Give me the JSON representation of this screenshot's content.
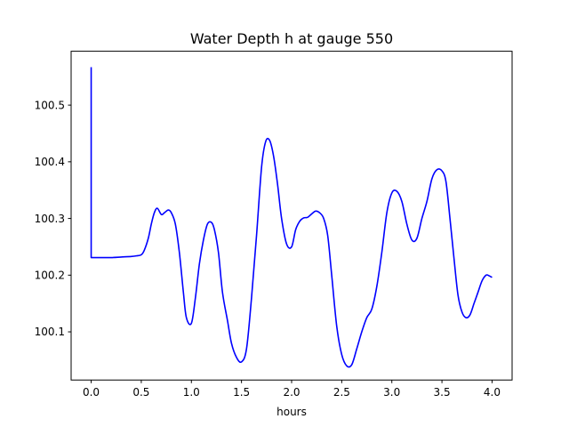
{
  "chart_data": {
    "type": "line",
    "title": "Water Depth h at gauge 550",
    "xlabel": "hours",
    "ylabel": "",
    "xlim": [
      -0.2,
      4.2
    ],
    "ylim": [
      100.015,
      100.595
    ],
    "xticks": [
      0.0,
      0.5,
      1.0,
      1.5,
      2.0,
      2.5,
      3.0,
      3.5,
      4.0
    ],
    "xtick_labels": [
      "0.0",
      "0.5",
      "1.0",
      "1.5",
      "2.0",
      "2.5",
      "3.0",
      "3.5",
      "4.0"
    ],
    "yticks": [
      100.1,
      100.2,
      100.3,
      100.4,
      100.5
    ],
    "ytick_labels": [
      "100.1",
      "100.2",
      "100.3",
      "100.4",
      "100.5"
    ],
    "grid": false,
    "line_color": "#0000ff",
    "series": [
      {
        "x": [
          0.0,
          0.0,
          0.0,
          0.1,
          0.2,
          0.3,
          0.4,
          0.45,
          0.5,
          0.53,
          0.57,
          0.6,
          0.63,
          0.66,
          0.7,
          0.73,
          0.77,
          0.8,
          0.84,
          0.88,
          0.92,
          0.95,
          1.0,
          1.04,
          1.08,
          1.12,
          1.16,
          1.2,
          1.23,
          1.27,
          1.31,
          1.36,
          1.4,
          1.45,
          1.5,
          1.55,
          1.6,
          1.65,
          1.7,
          1.74,
          1.78,
          1.82,
          1.86,
          1.9,
          1.95,
          2.0,
          2.04,
          2.08,
          2.12,
          2.16,
          2.2,
          2.24,
          2.28,
          2.32,
          2.36,
          2.4,
          2.45,
          2.5,
          2.55,
          2.6,
          2.65,
          2.7,
          2.75,
          2.8,
          2.85,
          2.9,
          2.95,
          3.0,
          3.05,
          3.1,
          3.15,
          3.2,
          3.25,
          3.3,
          3.35,
          3.4,
          3.45,
          3.5,
          3.54,
          3.58,
          3.62,
          3.66,
          3.7,
          3.74,
          3.78,
          3.82,
          3.86,
          3.9,
          3.94,
          3.97,
          4.0
        ],
        "y": [
          100.567,
          100.232,
          100.231,
          100.231,
          100.231,
          100.232,
          100.233,
          100.234,
          100.236,
          100.244,
          100.265,
          100.29,
          100.31,
          100.318,
          100.307,
          100.31,
          100.315,
          100.31,
          100.29,
          100.24,
          100.17,
          100.125,
          100.115,
          100.16,
          100.22,
          100.262,
          100.29,
          100.293,
          100.28,
          100.24,
          100.17,
          100.12,
          100.08,
          100.055,
          100.047,
          100.07,
          100.16,
          100.27,
          100.39,
          100.435,
          100.438,
          100.41,
          100.36,
          100.3,
          100.255,
          100.25,
          100.28,
          100.295,
          100.301,
          100.302,
          100.308,
          100.313,
          100.31,
          100.3,
          100.27,
          100.2,
          100.11,
          100.06,
          100.04,
          100.042,
          100.07,
          100.1,
          100.125,
          100.14,
          100.18,
          100.24,
          100.31,
          100.345,
          100.348,
          100.33,
          100.29,
          100.262,
          100.265,
          100.3,
          100.33,
          100.37,
          100.386,
          100.384,
          100.365,
          100.3,
          100.23,
          100.165,
          100.135,
          100.125,
          100.13,
          100.15,
          100.17,
          100.19,
          100.2,
          100.199,
          100.196
        ]
      }
    ]
  }
}
